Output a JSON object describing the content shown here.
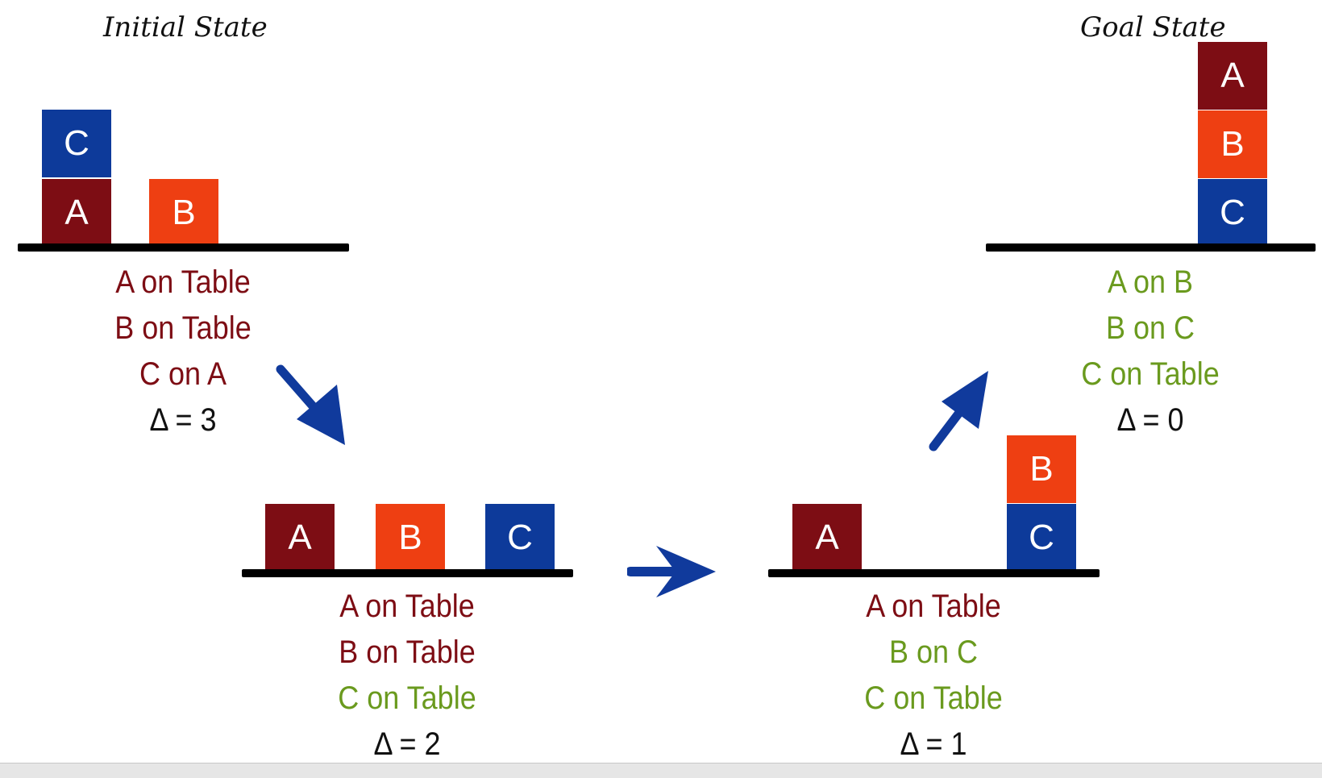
{
  "titles": {
    "initial": "Initial State",
    "goal": "Goal State"
  },
  "colors": {
    "block_a": "#7d0d14",
    "block_b": "#ee3f12",
    "block_c": "#0d3a9a",
    "unsatisfied": "#7d0d14",
    "satisfied": "#6a9a1e",
    "arrow": "#103a9c"
  },
  "states": {
    "initial": {
      "blocks": {
        "a": "A",
        "b": "B",
        "c": "C"
      },
      "facts": [
        "A on Table",
        "B on Table",
        "C on A"
      ],
      "delta": "Δ = 3"
    },
    "step1": {
      "blocks": {
        "a": "A",
        "b": "B",
        "c": "C"
      },
      "facts": [
        "A on Table",
        "B on Table",
        "C on Table"
      ],
      "delta": "Δ = 2"
    },
    "step2": {
      "blocks": {
        "a": "A",
        "b": "B",
        "c": "C"
      },
      "facts": [
        "A on Table",
        "B on C",
        "C on Table"
      ],
      "delta": "Δ = 1"
    },
    "goal": {
      "blocks": {
        "a": "A",
        "b": "B",
        "c": "C"
      },
      "facts": [
        "A on B",
        "B on C",
        "C on Table"
      ],
      "delta": "Δ = 0"
    }
  },
  "arrows": [
    "down-right-arrow-icon",
    "right-arrow-icon",
    "up-right-arrow-icon"
  ]
}
